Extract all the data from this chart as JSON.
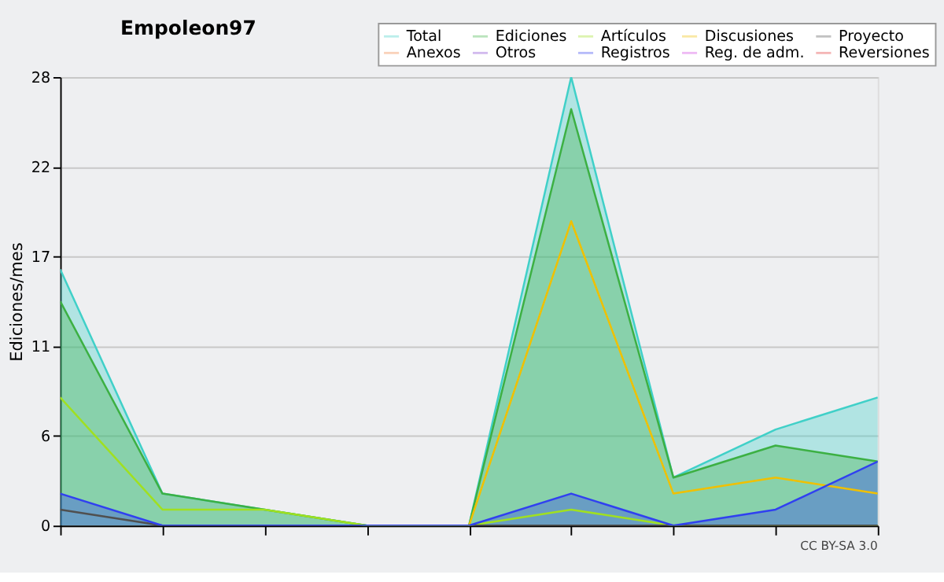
{
  "chart_data": {
    "type": "line",
    "title": "Empoleon97",
    "ylabel": "Ediciones/mes",
    "annotations": [
      "CC BY-SA 3.0"
    ],
    "categories": [
      null,
      null,
      null,
      null,
      null,
      null,
      null,
      null,
      null
    ],
    "ylim": [
      0,
      28
    ],
    "yticks": [
      0,
      {
        "value": 5.6,
        "label": "6"
      },
      {
        "value": 11.2,
        "label": "11"
      },
      {
        "value": 16.8,
        "label": "17"
      },
      {
        "value": 22.4,
        "label": "22"
      },
      28
    ],
    "grid": "y",
    "legend": "top right",
    "tick_labels": "y",
    "marker": "none",
    "line_style": "solid",
    "series": [
      {
        "name": "Total",
        "type": "area",
        "color": "#40d0c8",
        "values": [
          16,
          2,
          1,
          0,
          0,
          28,
          3,
          6,
          8
        ]
      },
      {
        "name": "Ediciones",
        "type": "area",
        "color": "#3cb043",
        "values": [
          14,
          2,
          1,
          0,
          0,
          26,
          3,
          5,
          4
        ]
      },
      {
        "name": "Artículos",
        "color": "#a0e020",
        "values": [
          8,
          1,
          1,
          0,
          0,
          1,
          0,
          0,
          0
        ]
      },
      {
        "name": "Discusiones",
        "color": "#f0c000",
        "values": [
          null,
          null,
          null,
          0,
          0,
          19,
          2,
          3,
          2
        ]
      },
      {
        "name": "Proyecto",
        "color": "#505050",
        "values": [
          1,
          0,
          0,
          0,
          0,
          0,
          0,
          0,
          0
        ]
      },
      {
        "name": "Anexos",
        "color": "#f08040",
        "values": [
          null,
          null,
          null,
          null,
          null,
          null,
          null,
          null,
          null
        ]
      },
      {
        "name": "Otros",
        "color": "#8040d0",
        "values": [
          null,
          null,
          null,
          null,
          null,
          null,
          null,
          null,
          null
        ]
      },
      {
        "name": "Registros",
        "type": "area",
        "color": "#3040f0",
        "values": [
          2,
          0,
          0,
          0,
          0,
          2,
          0,
          1,
          4
        ]
      },
      {
        "name": "Reg. de adm.",
        "color": "#d040e0",
        "values": [
          null,
          null,
          null,
          null,
          null,
          null,
          null,
          null,
          null
        ]
      },
      {
        "name": "Reversiones",
        "color": "#e03030",
        "values": [
          null,
          null,
          null,
          null,
          null,
          null,
          null,
          null,
          null
        ]
      }
    ]
  }
}
